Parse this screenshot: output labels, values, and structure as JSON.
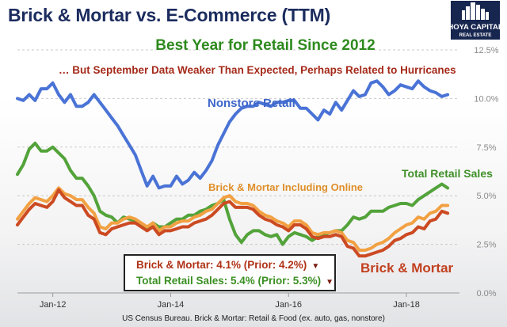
{
  "title": "Brick & Mortar vs. E-Commerce (TTM)",
  "subtitle": "Best Year for Retail Since 2012",
  "annotation_top": "… But September Data Weaker Than Expected, Perhaps Related to Hurricanes",
  "logo": {
    "line1": "HOYA CAPITAL",
    "line2": "REAL ESTATE"
  },
  "callout": {
    "brick_mortar": "Brick & Mortar: 4.1% (Prior: 4.2%)",
    "total_retail": "Total Retail Sales: 5.4% (Prior: 5.3%)",
    "down_icon": "triangle-down-icon"
  },
  "source": "US Census Bureau. Brick & Mortar: Retail & Food (ex. auto, gas, nonstore)",
  "colors": {
    "nonstore": "#4a73d6",
    "total_retail": "#53a33a",
    "bm_online": "#f2a142",
    "brick_mortar": "#cc4a22",
    "title": "#1b2c5e",
    "subtitle": "#2e8a1e",
    "annotation": "#a52a1a"
  },
  "chart_data": {
    "type": "line",
    "title": "Brick & Mortar vs. E-Commerce (TTM)",
    "xlabel": "",
    "ylabel": "",
    "ylim": [
      0,
      12.5
    ],
    "ytick_labels": [
      "0.0%",
      "2.5%",
      "5.0%",
      "7.5%",
      "10.0%",
      "12.5%"
    ],
    "y_ticks": [
      0,
      2.5,
      5,
      7.5,
      10,
      12.5
    ],
    "xtick_labels": [
      "Jan-12",
      "Jan-14",
      "Jan-16",
      "Jan-18"
    ],
    "x_ticks": [
      2012,
      2014,
      2016,
      2018
    ],
    "xlim": [
      2011.4,
      2018.9
    ],
    "grid": "horizontal dashed",
    "y_axis_side": "right",
    "series": [
      {
        "name": "Nonstore Retail",
        "color": "#4a73d6",
        "x": [
          2011.4,
          2011.5,
          2011.6,
          2011.7,
          2011.8,
          2011.9,
          2012.0,
          2012.1,
          2012.2,
          2012.3,
          2012.4,
          2012.5,
          2012.6,
          2012.7,
          2012.8,
          2012.9,
          2013.0,
          2013.1,
          2013.2,
          2013.3,
          2013.4,
          2013.5,
          2013.6,
          2013.7,
          2013.8,
          2013.9,
          2014.0,
          2014.1,
          2014.2,
          2014.3,
          2014.4,
          2014.5,
          2014.6,
          2014.7,
          2014.8,
          2014.9,
          2015.0,
          2015.1,
          2015.2,
          2015.3,
          2015.4,
          2015.5,
          2015.6,
          2015.7,
          2015.8,
          2015.9,
          2016.0,
          2016.1,
          2016.2,
          2016.3,
          2016.4,
          2016.5,
          2016.6,
          2016.7,
          2016.8,
          2016.9,
          2017.0,
          2017.1,
          2017.2,
          2017.3,
          2017.4,
          2017.5,
          2017.6,
          2017.7,
          2017.8,
          2017.9,
          2018.0,
          2018.1,
          2018.2,
          2018.3,
          2018.4,
          2018.5,
          2018.6,
          2018.7
        ],
        "values": [
          10.0,
          9.9,
          10.2,
          9.9,
          10.5,
          10.5,
          10.8,
          10.2,
          9.8,
          10.2,
          9.6,
          9.6,
          9.8,
          10.2,
          9.8,
          9.4,
          9.0,
          8.6,
          8.1,
          7.6,
          7.1,
          6.3,
          5.5,
          6.0,
          5.4,
          5.5,
          5.5,
          6.0,
          5.6,
          5.8,
          6.2,
          5.9,
          6.3,
          6.8,
          7.6,
          8.2,
          8.8,
          9.2,
          9.5,
          9.6,
          9.6,
          9.8,
          9.7,
          9.6,
          9.8,
          9.8,
          9.9,
          9.9,
          9.5,
          9.5,
          9.2,
          8.9,
          9.4,
          9.2,
          9.8,
          9.4,
          9.9,
          10.4,
          10.1,
          10.2,
          10.8,
          10.9,
          10.6,
          10.2,
          10.4,
          10.7,
          10.6,
          10.5,
          10.9,
          10.6,
          10.4,
          10.3,
          10.1,
          10.2
        ]
      },
      {
        "name": "Total Retail Sales",
        "color": "#53a33a",
        "x": [
          2011.4,
          2011.5,
          2011.6,
          2011.7,
          2011.8,
          2011.9,
          2012.0,
          2012.1,
          2012.2,
          2012.3,
          2012.4,
          2012.5,
          2012.6,
          2012.7,
          2012.8,
          2012.9,
          2013.0,
          2013.1,
          2013.2,
          2013.3,
          2013.4,
          2013.5,
          2013.6,
          2013.7,
          2013.8,
          2013.9,
          2014.0,
          2014.1,
          2014.2,
          2014.3,
          2014.4,
          2014.5,
          2014.6,
          2014.7,
          2014.8,
          2014.9,
          2015.0,
          2015.1,
          2015.2,
          2015.3,
          2015.4,
          2015.5,
          2015.6,
          2015.7,
          2015.8,
          2015.9,
          2016.0,
          2016.1,
          2016.2,
          2016.3,
          2016.4,
          2016.5,
          2016.6,
          2016.7,
          2016.8,
          2016.9,
          2017.0,
          2017.1,
          2017.2,
          2017.3,
          2017.4,
          2017.5,
          2017.6,
          2017.7,
          2017.8,
          2017.9,
          2018.0,
          2018.1,
          2018.2,
          2018.3,
          2018.4,
          2018.5,
          2018.6,
          2018.7
        ],
        "values": [
          6.1,
          6.6,
          7.4,
          7.7,
          7.3,
          7.3,
          7.5,
          7.2,
          6.9,
          6.3,
          5.9,
          5.9,
          5.5,
          5.0,
          4.2,
          4.0,
          3.9,
          3.6,
          3.9,
          3.8,
          3.7,
          3.5,
          3.3,
          3.6,
          3.4,
          3.4,
          3.6,
          3.8,
          3.8,
          4.0,
          4.0,
          4.2,
          4.3,
          4.5,
          4.6,
          4.8,
          3.8,
          3.0,
          2.6,
          3.0,
          3.2,
          3.2,
          3.0,
          2.9,
          3.0,
          2.5,
          2.9,
          3.1,
          3.0,
          2.9,
          2.7,
          2.9,
          3.0,
          3.1,
          3.2,
          3.2,
          3.5,
          3.9,
          3.8,
          3.9,
          4.2,
          4.2,
          4.2,
          4.4,
          4.5,
          4.6,
          4.6,
          4.5,
          4.8,
          5.0,
          5.2,
          5.4,
          5.6,
          5.4
        ]
      },
      {
        "name": "Brick & Mortar Including Online",
        "color": "#f2a142",
        "x": [
          2011.4,
          2011.5,
          2011.6,
          2011.7,
          2011.8,
          2011.9,
          2012.0,
          2012.1,
          2012.2,
          2012.3,
          2012.4,
          2012.5,
          2012.6,
          2012.7,
          2012.8,
          2012.9,
          2013.0,
          2013.1,
          2013.2,
          2013.3,
          2013.4,
          2013.5,
          2013.6,
          2013.7,
          2013.8,
          2013.9,
          2014.0,
          2014.1,
          2014.2,
          2014.3,
          2014.4,
          2014.5,
          2014.6,
          2014.7,
          2014.8,
          2014.9,
          2015.0,
          2015.1,
          2015.2,
          2015.3,
          2015.4,
          2015.5,
          2015.6,
          2015.7,
          2015.8,
          2015.9,
          2016.0,
          2016.1,
          2016.2,
          2016.3,
          2016.4,
          2016.5,
          2016.6,
          2016.7,
          2016.8,
          2016.9,
          2017.0,
          2017.1,
          2017.2,
          2017.3,
          2017.4,
          2017.5,
          2017.6,
          2017.7,
          2017.8,
          2017.9,
          2018.0,
          2018.1,
          2018.2,
          2018.3,
          2018.4,
          2018.5,
          2018.6,
          2018.7
        ],
        "values": [
          3.8,
          4.2,
          4.6,
          4.9,
          4.8,
          4.7,
          5.0,
          5.4,
          5.1,
          5.0,
          4.8,
          4.8,
          4.4,
          4.1,
          3.4,
          3.3,
          3.6,
          3.6,
          3.8,
          3.9,
          3.8,
          3.6,
          3.4,
          3.6,
          3.2,
          3.4,
          3.4,
          3.6,
          3.7,
          3.7,
          3.9,
          4.0,
          4.2,
          4.3,
          4.6,
          4.9,
          5.0,
          4.7,
          4.6,
          4.6,
          4.5,
          4.2,
          4.0,
          3.9,
          3.7,
          3.6,
          3.4,
          3.7,
          3.7,
          3.5,
          3.1,
          3.0,
          3.1,
          3.1,
          3.2,
          3.1,
          2.7,
          2.6,
          2.2,
          2.2,
          2.3,
          2.5,
          2.6,
          2.8,
          3.1,
          3.3,
          3.5,
          3.6,
          3.9,
          3.8,
          4.1,
          4.2,
          4.5,
          4.5
        ]
      },
      {
        "name": "Brick & Mortar",
        "color": "#cc4a22",
        "x": [
          2011.4,
          2011.5,
          2011.6,
          2011.7,
          2011.8,
          2011.9,
          2012.0,
          2012.1,
          2012.2,
          2012.3,
          2012.4,
          2012.5,
          2012.6,
          2012.7,
          2012.8,
          2012.9,
          2013.0,
          2013.1,
          2013.2,
          2013.3,
          2013.4,
          2013.5,
          2013.6,
          2013.7,
          2013.8,
          2013.9,
          2014.0,
          2014.1,
          2014.2,
          2014.3,
          2014.4,
          2014.5,
          2014.6,
          2014.7,
          2014.8,
          2014.9,
          2015.0,
          2015.1,
          2015.2,
          2015.3,
          2015.4,
          2015.5,
          2015.6,
          2015.7,
          2015.8,
          2015.9,
          2016.0,
          2016.1,
          2016.2,
          2016.3,
          2016.4,
          2016.5,
          2016.6,
          2016.7,
          2016.8,
          2016.9,
          2017.0,
          2017.1,
          2017.2,
          2017.3,
          2017.4,
          2017.5,
          2017.6,
          2017.7,
          2017.8,
          2017.9,
          2018.0,
          2018.1,
          2018.2,
          2018.3,
          2018.4,
          2018.5,
          2018.6,
          2018.7
        ],
        "values": [
          3.5,
          3.9,
          4.3,
          4.6,
          4.5,
          4.4,
          4.7,
          5.3,
          4.9,
          4.7,
          4.5,
          4.5,
          4.0,
          3.8,
          3.1,
          3.0,
          3.3,
          3.4,
          3.5,
          3.6,
          3.6,
          3.4,
          3.2,
          3.4,
          3.0,
          3.2,
          3.2,
          3.3,
          3.4,
          3.4,
          3.6,
          3.7,
          3.8,
          4.0,
          4.3,
          4.6,
          4.7,
          4.4,
          4.4,
          4.4,
          4.3,
          4.0,
          3.8,
          3.7,
          3.5,
          3.4,
          3.2,
          3.5,
          3.5,
          3.3,
          2.9,
          2.8,
          2.9,
          2.9,
          3.0,
          2.9,
          2.4,
          2.3,
          1.9,
          1.9,
          2.0,
          2.1,
          2.2,
          2.4,
          2.7,
          2.8,
          3.0,
          3.1,
          3.4,
          3.3,
          3.7,
          3.8,
          4.2,
          4.1
        ]
      }
    ]
  }
}
